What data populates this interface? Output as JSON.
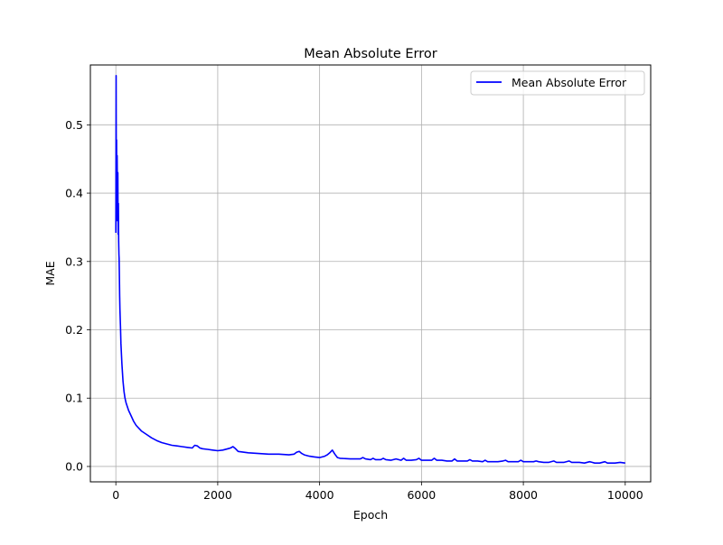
{
  "chart_data": {
    "type": "line",
    "title": "Mean Absolute Error",
    "xlabel": "Epoch",
    "ylabel": "MAE",
    "xlim": [
      -500,
      10500
    ],
    "ylim": [
      -0.0225,
      0.5876
    ],
    "xticks": [
      0,
      2000,
      4000,
      6000,
      8000,
      10000
    ],
    "xtick_labels": [
      "0",
      "2000",
      "4000",
      "6000",
      "8000",
      "10000"
    ],
    "yticks": [
      0.0,
      0.1,
      0.2,
      0.3,
      0.4,
      0.5
    ],
    "ytick_labels": [
      "0.0",
      "0.1",
      "0.2",
      "0.3",
      "0.4",
      "0.5"
    ],
    "grid": true,
    "legend_position": "upper right",
    "series": [
      {
        "name": "Mean Absolute Error",
        "color": "#0000ff",
        "x": [
          0,
          5,
          10,
          15,
          20,
          25,
          30,
          35,
          40,
          45,
          50,
          55,
          60,
          65,
          70,
          75,
          80,
          90,
          100,
          120,
          140,
          160,
          180,
          200,
          250,
          300,
          350,
          400,
          500,
          600,
          700,
          800,
          900,
          1000,
          1100,
          1200,
          1300,
          1400,
          1500,
          1550,
          1600,
          1650,
          1700,
          1800,
          1900,
          2000,
          2100,
          2200,
          2250,
          2300,
          2350,
          2400,
          2500,
          2600,
          2800,
          3000,
          3200,
          3400,
          3500,
          3550,
          3600,
          3650,
          3700,
          3800,
          3900,
          4000,
          4100,
          4150,
          4200,
          4250,
          4300,
          4350,
          4400,
          4600,
          4800,
          4850,
          4900,
          5000,
          5050,
          5100,
          5200,
          5250,
          5300,
          5400,
          5500,
          5600,
          5650,
          5700,
          5800,
          5900,
          5950,
          6000,
          6100,
          6200,
          6250,
          6300,
          6400,
          6500,
          6600,
          6650,
          6700,
          6800,
          6900,
          6950,
          7000,
          7100,
          7200,
          7250,
          7300,
          7400,
          7500,
          7600,
          7650,
          7700,
          7800,
          7900,
          7950,
          8000,
          8100,
          8200,
          8250,
          8300,
          8400,
          8500,
          8600,
          8650,
          8700,
          8800,
          8900,
          8950,
          9000,
          9100,
          9200,
          9300,
          9350,
          9400,
          9500,
          9600,
          9650,
          9700,
          9800,
          9900,
          10000
        ],
        "y": [
          0.342,
          0.572,
          0.4,
          0.478,
          0.36,
          0.455,
          0.4,
          0.38,
          0.43,
          0.34,
          0.385,
          0.33,
          0.31,
          0.305,
          0.28,
          0.25,
          0.23,
          0.205,
          0.18,
          0.15,
          0.125,
          0.11,
          0.1,
          0.093,
          0.082,
          0.074,
          0.066,
          0.06,
          0.052,
          0.047,
          0.042,
          0.038,
          0.035,
          0.033,
          0.031,
          0.03,
          0.029,
          0.028,
          0.027,
          0.031,
          0.03,
          0.027,
          0.026,
          0.025,
          0.024,
          0.023,
          0.024,
          0.026,
          0.027,
          0.029,
          0.026,
          0.022,
          0.021,
          0.02,
          0.019,
          0.018,
          0.018,
          0.017,
          0.018,
          0.021,
          0.022,
          0.019,
          0.017,
          0.015,
          0.014,
          0.013,
          0.015,
          0.017,
          0.02,
          0.024,
          0.018,
          0.013,
          0.012,
          0.011,
          0.011,
          0.013,
          0.011,
          0.01,
          0.012,
          0.01,
          0.01,
          0.012,
          0.01,
          0.009,
          0.011,
          0.009,
          0.012,
          0.009,
          0.009,
          0.01,
          0.012,
          0.009,
          0.009,
          0.009,
          0.012,
          0.009,
          0.009,
          0.008,
          0.008,
          0.011,
          0.008,
          0.008,
          0.008,
          0.01,
          0.008,
          0.008,
          0.007,
          0.009,
          0.007,
          0.007,
          0.007,
          0.008,
          0.009,
          0.007,
          0.007,
          0.007,
          0.009,
          0.007,
          0.007,
          0.007,
          0.008,
          0.007,
          0.006,
          0.006,
          0.008,
          0.006,
          0.006,
          0.006,
          0.008,
          0.006,
          0.006,
          0.006,
          0.005,
          0.007,
          0.006,
          0.005,
          0.005,
          0.007,
          0.005,
          0.005,
          0.005,
          0.006,
          0.005
        ]
      }
    ]
  }
}
